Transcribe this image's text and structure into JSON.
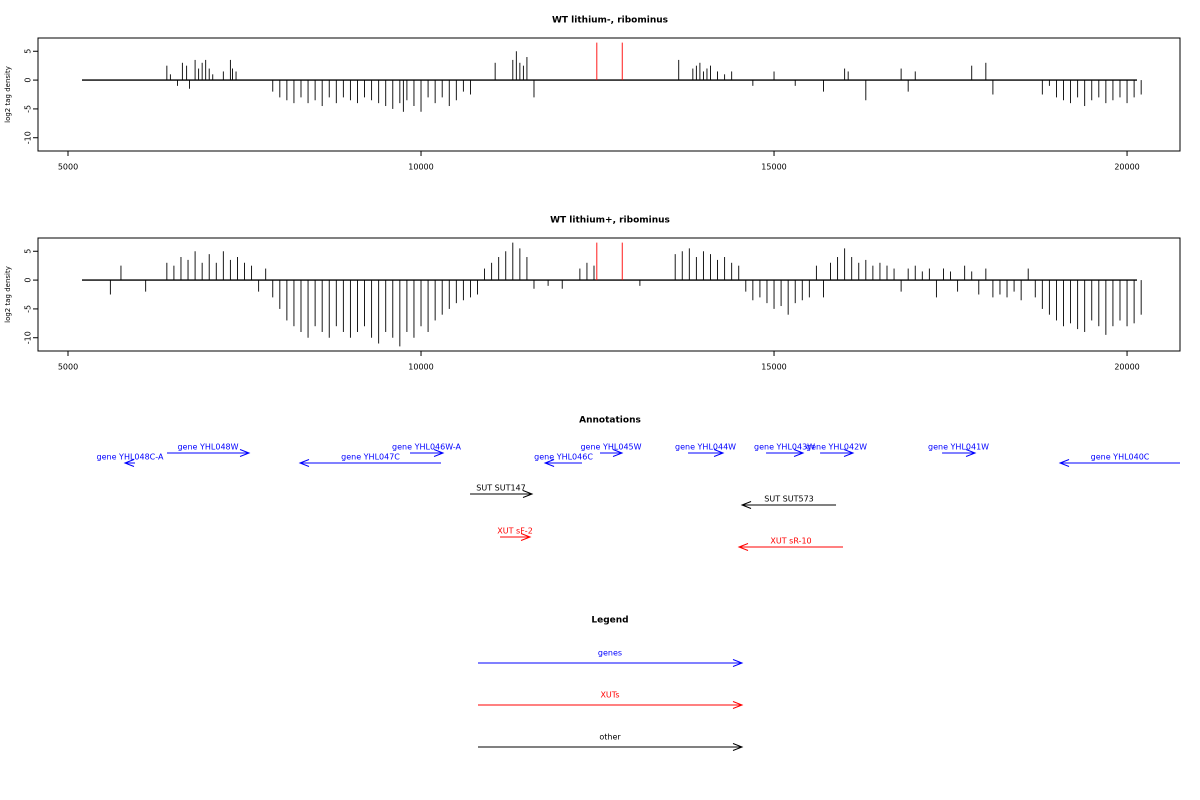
{
  "chart_data": [
    {
      "type": "needle",
      "title": "WT lithium-, ribominus",
      "ylabel": "log2 tag density",
      "xlim": [
        4575,
        20750
      ],
      "ylim": [
        -12.3,
        7.3
      ],
      "xticks": [
        5000,
        10000,
        15000,
        20000
      ],
      "yticks": [
        5,
        0,
        -5,
        -10
      ],
      "series": [
        {
          "color": "#000000",
          "x": [
            6400,
            6450,
            6550,
            6620,
            6680,
            6720,
            6800,
            6850,
            6900,
            6950,
            7000,
            7050,
            7200,
            7300,
            7330,
            7380,
            7900,
            8000,
            8100,
            8200,
            8300,
            8400,
            8500,
            8600,
            8700,
            8800,
            8900,
            9000,
            9100,
            9200,
            9300,
            9400,
            9500,
            9600,
            9700,
            9750,
            9800,
            9900,
            10000,
            10100,
            10200,
            10300,
            10400,
            10500,
            10600,
            10700,
            11050,
            11300,
            11350,
            11400,
            11450,
            11500,
            11600,
            13650,
            13850,
            13900,
            13950,
            14000,
            14050,
            14100,
            14200,
            14300,
            14400,
            14700,
            15000,
            15300,
            15700,
            16000,
            16050,
            16300,
            16800,
            16900,
            17000,
            17800,
            18000,
            18100,
            18800,
            18900,
            19000,
            19100,
            19200,
            19300,
            19400,
            19500,
            19600,
            19700,
            19800,
            19900,
            20000,
            20100,
            20200
          ],
          "values": [
            2.5,
            1,
            -1,
            3,
            2.5,
            -1.5,
            3.5,
            2,
            3,
            3.5,
            2,
            1,
            1.5,
            3.5,
            2,
            1.5,
            -2,
            -3,
            -3.5,
            -4,
            -3,
            -4,
            -3.5,
            -4.5,
            -3,
            -4,
            -3,
            -3.5,
            -4,
            -3,
            -3.5,
            -4,
            -4.5,
            -5,
            -4,
            -5.5,
            -3.5,
            -4.5,
            -5.5,
            -3,
            -4,
            -3,
            -4.5,
            -3.5,
            -2,
            -2.5,
            3,
            3.5,
            5,
            3,
            2.5,
            4,
            -3,
            3.5,
            2,
            2.5,
            3,
            1.5,
            2,
            2.5,
            1.5,
            1,
            1.5,
            -1,
            1.5,
            -1,
            -2,
            2,
            1.5,
            -3.5,
            2,
            -2,
            1.5,
            2.5,
            3,
            -2.5,
            -2.5,
            -1,
            -3,
            -3.5,
            -4,
            -3,
            -4.5,
            -3.5,
            -3,
            -4,
            -3.5,
            -3,
            -4,
            -3,
            -2.5
          ]
        },
        {
          "color": "#ff0000",
          "x": [
            12490,
            12850
          ],
          "values": [
            6.5,
            6.5
          ]
        }
      ]
    },
    {
      "type": "needle",
      "title": "WT lithium+, ribominus",
      "ylabel": "log2 tag density",
      "xlim": [
        4575,
        20750
      ],
      "ylim": [
        -12.3,
        7.3
      ],
      "xticks": [
        5000,
        10000,
        15000,
        20000
      ],
      "yticks": [
        5,
        0,
        -5,
        -10
      ],
      "series": [
        {
          "color": "#000000",
          "x": [
            5600,
            5750,
            6100,
            6400,
            6500,
            6600,
            6700,
            6800,
            6900,
            7000,
            7100,
            7200,
            7300,
            7400,
            7500,
            7600,
            7700,
            7800,
            7900,
            8000,
            8100,
            8200,
            8300,
            8400,
            8500,
            8600,
            8700,
            8800,
            8900,
            9000,
            9100,
            9200,
            9300,
            9400,
            9500,
            9600,
            9700,
            9800,
            9900,
            10000,
            10100,
            10200,
            10300,
            10400,
            10500,
            10600,
            10700,
            10800,
            10900,
            11000,
            11100,
            11200,
            11300,
            11400,
            11500,
            11600,
            11800,
            12000,
            12250,
            12350,
            12450,
            13100,
            13600,
            13700,
            13800,
            13900,
            14000,
            14100,
            14200,
            14300,
            14400,
            14500,
            14600,
            14700,
            14800,
            14900,
            15000,
            15100,
            15200,
            15300,
            15400,
            15500,
            15600,
            15700,
            15800,
            15900,
            16000,
            16100,
            16200,
            16300,
            16400,
            16500,
            16600,
            16700,
            16800,
            16900,
            17000,
            17100,
            17200,
            17300,
            17400,
            17500,
            17600,
            17700,
            17800,
            17900,
            18000,
            18100,
            18200,
            18300,
            18400,
            18500,
            18600,
            18700,
            18800,
            18900,
            19000,
            19100,
            19200,
            19300,
            19400,
            19500,
            19600,
            19700,
            19800,
            19900,
            20000,
            20100,
            20200
          ],
          "values": [
            -2.5,
            2.5,
            -2,
            3,
            2.5,
            4,
            3.5,
            5,
            3,
            4.5,
            3,
            5,
            3.5,
            4,
            3,
            2.5,
            -2,
            2,
            -3,
            -5,
            -7,
            -8,
            -9,
            -10,
            -8,
            -9,
            -10,
            -8,
            -9,
            -10,
            -9,
            -8,
            -10,
            -11,
            -9,
            -10,
            -11.5,
            -9,
            -10,
            -8,
            -9,
            -7,
            -6,
            -5,
            -4,
            -3.5,
            -3,
            -2.5,
            2,
            3,
            4,
            5,
            6.5,
            5.5,
            4,
            -1.5,
            -1,
            -1.5,
            2,
            3,
            2.5,
            -1,
            4.5,
            5,
            5.5,
            4,
            5,
            4.5,
            3.5,
            4,
            3,
            2.5,
            -2,
            -3.5,
            -3,
            -4,
            -5,
            -4.5,
            -6,
            -4,
            -3.5,
            -3,
            2.5,
            -3,
            3,
            4,
            5.5,
            4,
            3,
            3.5,
            2.5,
            3,
            2.5,
            2,
            -2,
            2,
            2.5,
            1.5,
            2,
            -3,
            2,
            1.5,
            -2,
            2.5,
            1.5,
            -2.5,
            2,
            -3,
            -2.5,
            -3,
            -2,
            -3.5,
            2,
            -3,
            -5,
            -6,
            -7,
            -8,
            -7.5,
            -8.5,
            -9,
            -7,
            -8,
            -9.5,
            -8,
            -7,
            -8,
            -7.5,
            -6
          ]
        },
        {
          "color": "#ff0000",
          "x": [
            12490,
            12850
          ],
          "values": [
            6.5,
            6.5
          ]
        }
      ]
    }
  ],
  "annotations": {
    "title": "Annotations",
    "features": [
      {
        "label": "gene YHL048C-A",
        "start": 5807,
        "end": 5949,
        "strand": "-",
        "color": "#0000ff"
      },
      {
        "label": "gene YHL048W",
        "start": 6402,
        "end": 7564,
        "strand": "+",
        "color": "#0000ff"
      },
      {
        "label": "gene YHL047C",
        "start": 8286,
        "end": 10283,
        "strand": "-",
        "color": "#0000ff"
      },
      {
        "label": "gene YHL046W-A",
        "start": 9844,
        "end": 10312,
        "strand": "+",
        "color": "#0000ff"
      },
      {
        "label": "gene YHL046C",
        "start": 11757,
        "end": 12280,
        "strand": "-",
        "color": "#0000ff"
      },
      {
        "label": "gene YHL045W",
        "start": 12535,
        "end": 12847,
        "strand": "+",
        "color": "#0000ff"
      },
      {
        "label": "gene YHL044W",
        "start": 13782,
        "end": 14278,
        "strand": "+",
        "color": "#0000ff"
      },
      {
        "label": "gene YHL043W",
        "start": 14887,
        "end": 15411,
        "strand": "+",
        "color": "#0000ff"
      },
      {
        "label": "gene YHL042W",
        "start": 15652,
        "end": 16119,
        "strand": "+",
        "color": "#0000ff"
      },
      {
        "label": "gene YHL041W",
        "start": 17380,
        "end": 17847,
        "strand": "+",
        "color": "#0000ff"
      },
      {
        "label": "gene YHL040C",
        "start": 19051,
        "end": 20750,
        "strand": "-",
        "color": "#0000ff"
      },
      {
        "label": "SUT SUT147",
        "start": 10694,
        "end": 11572,
        "strand": "+",
        "color": "#000000"
      },
      {
        "label": "SUT SUT573",
        "start": 14547,
        "end": 15878,
        "strand": "-",
        "color": "#000000"
      },
      {
        "label": "XUT sF-2",
        "start": 11119,
        "end": 11544,
        "strand": "+",
        "color": "#ff0000"
      },
      {
        "label": "XUT sR-10",
        "start": 14504,
        "end": 15977,
        "strand": "-",
        "color": "#ff0000"
      }
    ]
  },
  "legend": {
    "title": "Legend",
    "items": [
      {
        "label": "genes",
        "color": "#0000ff"
      },
      {
        "label": "XUTs",
        "color": "#ff0000"
      },
      {
        "label": "other",
        "color": "#000000"
      }
    ]
  }
}
